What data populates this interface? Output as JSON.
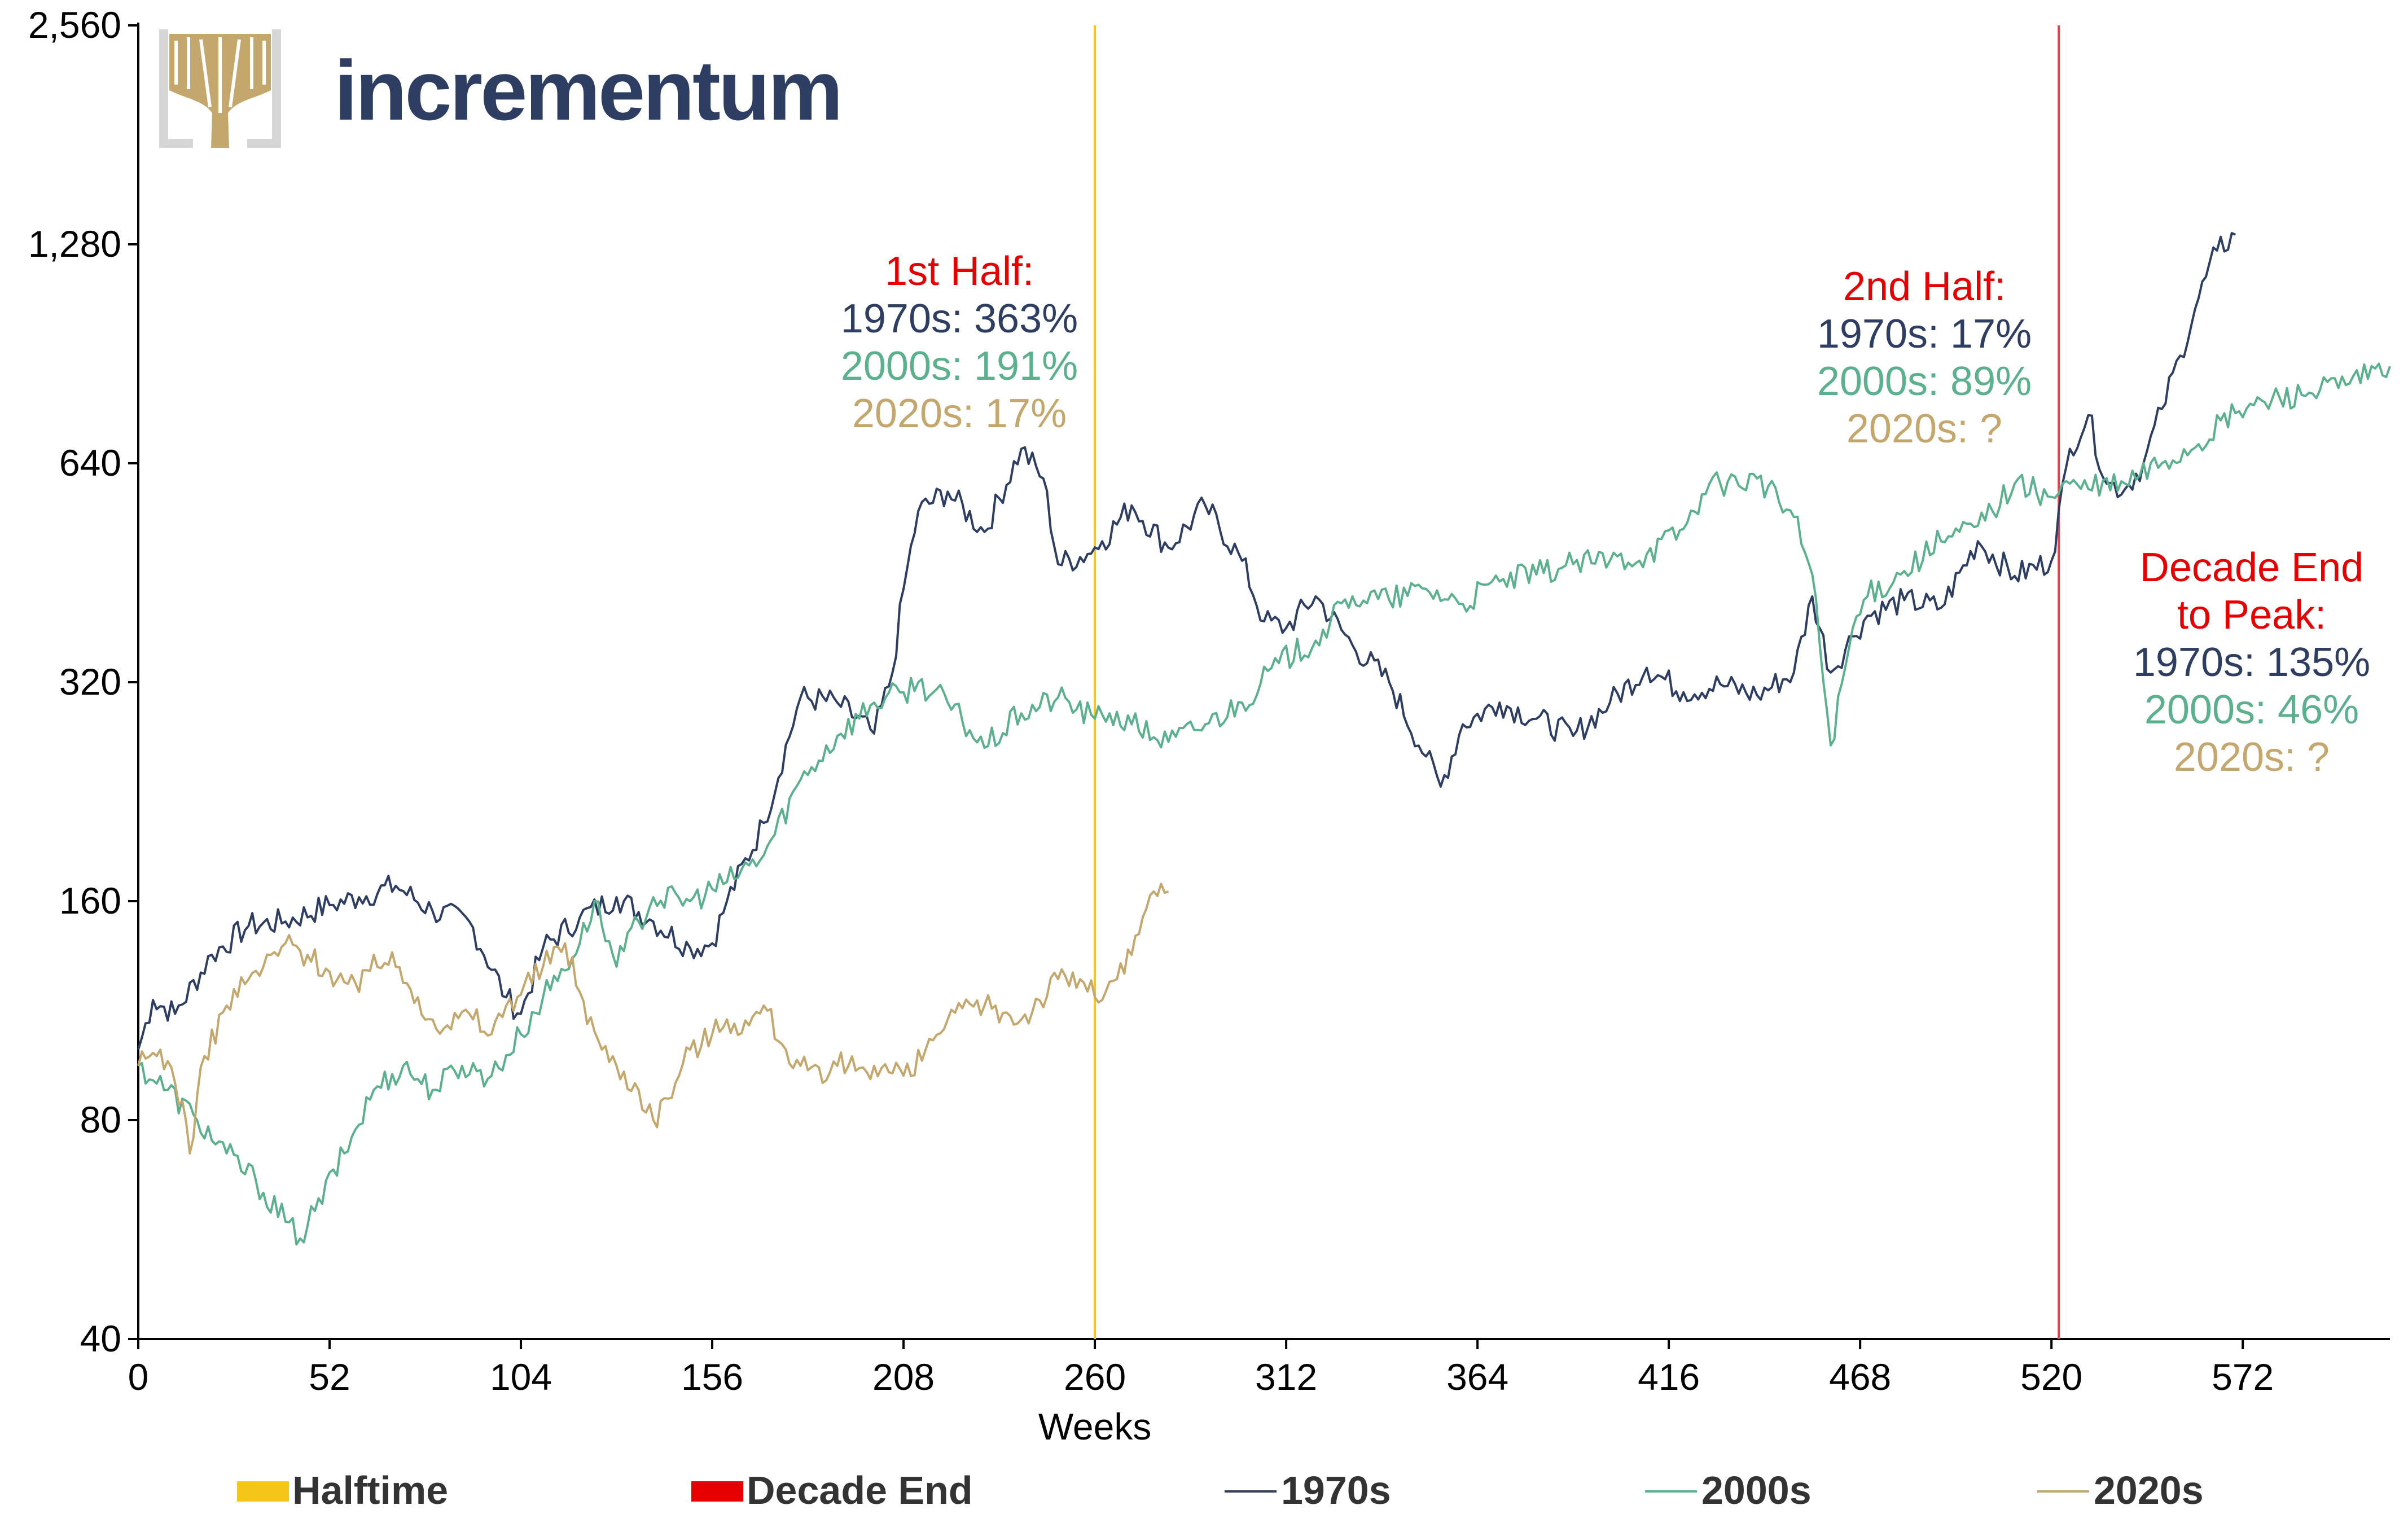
{
  "brand": {
    "name": "incrementum",
    "logo_icon": "tree-logo-icon",
    "colors": {
      "text": "#2d3e62",
      "tree": "#c4a76c",
      "frame": "#d6d6d6"
    }
  },
  "chart_data": {
    "type": "line",
    "title": "",
    "xlabel": "Weeks",
    "ylabel": "",
    "y_scale": "log2",
    "ylim": [
      40,
      2560
    ],
    "xlim": [
      0,
      612
    ],
    "x_ticks": [
      "0",
      "52",
      "104",
      "156",
      "208",
      "260",
      "312",
      "364",
      "416",
      "468",
      "520",
      "572"
    ],
    "y_ticks": [
      "40",
      "80",
      "160",
      "320",
      "640",
      "1,280",
      "2,560"
    ],
    "grid": false,
    "legend_position": "bottom",
    "vlines": [
      {
        "name": "Halftime",
        "x": 260,
        "color": "#f5c518"
      },
      {
        "name": "Decade End",
        "x": 522,
        "color": "#e8404a"
      }
    ],
    "legend": [
      {
        "label": "Halftime",
        "kind": "box",
        "color": "#f5c518"
      },
      {
        "label": "Decade End",
        "kind": "box",
        "color": "#e60000"
      },
      {
        "label": "1970s",
        "kind": "line",
        "color": "#2d3e62"
      },
      {
        "label": "2000s",
        "kind": "line",
        "color": "#5bb08e"
      },
      {
        "label": "2020s",
        "kind": "line",
        "color": "#c4a76c"
      }
    ],
    "series": [
      {
        "name": "1970s",
        "color": "#2d3e62",
        "x": [
          0,
          4,
          10,
          20,
          30,
          40,
          52,
          60,
          70,
          80,
          90,
          100,
          104,
          110,
          120,
          130,
          140,
          150,
          156,
          160,
          170,
          180,
          190,
          200,
          205,
          208,
          212,
          220,
          230,
          240,
          246,
          250,
          258,
          262,
          270,
          280,
          290,
          300,
          306,
          312,
          320,
          330,
          340,
          350,
          354,
          360,
          370,
          380,
          390,
          400,
          410,
          420,
          430,
          440,
          450,
          455,
          460,
          466,
          470,
          480,
          490,
          500,
          510,
          520,
          525,
          530,
          535,
          540,
          545,
          550,
          555,
          560,
          565,
          570
        ],
        "y": [
          100,
          117,
          112,
          135,
          148,
          150,
          158,
          162,
          168,
          155,
          150,
          118,
          112,
          138,
          152,
          162,
          150,
          138,
          140,
          160,
          205,
          305,
          300,
          272,
          330,
          430,
          550,
          585,
          515,
          670,
          610,
          465,
          480,
          500,
          560,
          490,
          560,
          470,
          388,
          380,
          420,
          360,
          320,
          253,
          230,
          280,
          300,
          285,
          270,
          300,
          335,
          310,
          318,
          307,
          330,
          420,
          330,
          370,
          395,
          415,
          405,
          500,
          448,
          470,
          670,
          745,
          600,
          590,
          640,
          760,
          900,
          1080,
          1255,
          1320
        ]
      },
      {
        "name": "2000s",
        "color": "#5bb08e",
        "x": [
          0,
          8,
          16,
          24,
          32,
          40,
          44,
          48,
          56,
          64,
          72,
          80,
          88,
          96,
          104,
          110,
          120,
          124,
          130,
          136,
          140,
          150,
          160,
          170,
          180,
          190,
          200,
          208,
          212,
          220,
          230,
          240,
          250,
          260,
          264,
          270,
          280,
          290,
          300,
          310,
          320,
          330,
          340,
          350,
          360,
          370,
          380,
          390,
          400,
          410,
          420,
          425,
          430,
          440,
          450,
          455,
          460,
          466,
          470,
          480,
          490,
          500,
          510,
          520,
          525,
          530,
          540,
          550,
          560,
          570,
          580,
          590,
          600,
          612
        ],
        "y": [
          95,
          88,
          80,
          72,
          66,
          58,
          55,
          60,
          72,
          88,
          95,
          88,
          95,
          92,
          105,
          118,
          140,
          160,
          130,
          150,
          162,
          160,
          170,
          185,
          235,
          270,
          300,
          310,
          320,
          300,
          260,
          290,
          305,
          285,
          290,
          280,
          265,
          280,
          300,
          340,
          365,
          420,
          415,
          430,
          410,
          440,
          450,
          465,
          470,
          480,
          520,
          580,
          600,
          610,
          540,
          450,
          262,
          380,
          420,
          455,
          500,
          525,
          600,
          575,
          600,
          590,
          600,
          640,
          680,
          750,
          785,
          800,
          820,
          870
        ]
      },
      {
        "name": "2020s",
        "color": "#c4a76c",
        "x": [
          0,
          6,
          10,
          12,
          14,
          18,
          24,
          30,
          34,
          40,
          46,
          52,
          60,
          64,
          70,
          76,
          80,
          84,
          90,
          96,
          100,
          110,
          116,
          120,
          126,
          130,
          136,
          140,
          146,
          150,
          156,
          160,
          166,
          170,
          176,
          180,
          186,
          190,
          200,
          210,
          214,
          220,
          230,
          240,
          250,
          256,
          260,
          266,
          270,
          276,
          280
        ],
        "y": [
          95,
          100,
          90,
          85,
          72,
          98,
          115,
          125,
          130,
          140,
          135,
          128,
          120,
          135,
          130,
          118,
          110,
          108,
          112,
          105,
          115,
          130,
          140,
          120,
          100,
          95,
          88,
          80,
          90,
          100,
          105,
          110,
          108,
          115,
          100,
          95,
          90,
          95,
          95,
          92,
          100,
          110,
          115,
          110,
          125,
          125,
          118,
          125,
          135,
          165,
          165
        ]
      }
    ],
    "annotations": [
      {
        "id": "first_half",
        "lines": [
          {
            "text": "1st Half:",
            "color": "#e60000"
          },
          {
            "text": "1970s: 363%",
            "color": "#2d3e62"
          },
          {
            "text": "2000s: 191%",
            "color": "#5bb08e"
          },
          {
            "text": "2020s: 17%",
            "color": "#c4a76c"
          }
        ]
      },
      {
        "id": "second_half",
        "lines": [
          {
            "text": "2nd Half:",
            "color": "#e60000"
          },
          {
            "text": "1970s: 17%",
            "color": "#2d3e62"
          },
          {
            "text": "2000s: 89%",
            "color": "#5bb08e"
          },
          {
            "text": "2020s: ?",
            "color": "#c4a76c"
          }
        ]
      },
      {
        "id": "decade_end",
        "lines": [
          {
            "text": "Decade End",
            "color": "#e60000"
          },
          {
            "text": "to Peak:",
            "color": "#e60000"
          },
          {
            "text": "1970s: 135%",
            "color": "#2d3e62"
          },
          {
            "text": "2000s: 46%",
            "color": "#5bb08e"
          },
          {
            "text": "2020s: ?",
            "color": "#c4a76c"
          }
        ]
      }
    ]
  }
}
